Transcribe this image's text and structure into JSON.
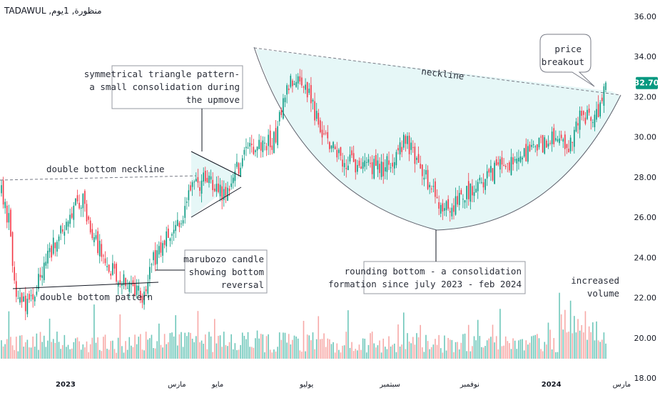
{
  "header": {
    "title": "TADAWUL ,منظورة, 1يوم"
  },
  "price_label": {
    "text": "32.70",
    "color": "#089981"
  },
  "colors": {
    "up": "#089981",
    "down": "#f23645",
    "vol_up": "#6ec7ba",
    "vol_down": "#f7a9a7",
    "bowl_fill": "#e6f7f7"
  },
  "annotations": {
    "double_bottom_neckline": "double bottom neckline",
    "double_bottom_pattern": "double bottom pattern",
    "triangle": [
      "symmetrical triangle pattern-",
      "a small consolidation during",
      "the upmove"
    ],
    "marubozo": [
      "marubozo candle",
      "showing bottom",
      "reversal"
    ],
    "neckline": "neckline",
    "rounding": [
      "rounding bottom - a consolidation",
      "formation since july 2023 - feb 2024"
    ],
    "breakout": [
      "price",
      "breakout"
    ],
    "volume": [
      "increased",
      "volume"
    ]
  },
  "chart_data": {
    "type": "candlestick",
    "title": "TADAWUL ,منظورة, 1يوم",
    "y_ticks": [
      "36.00",
      "34.00",
      "32.00",
      "30.00",
      "28.00",
      "26.00",
      "24.00",
      "22.00",
      "20.00",
      "18.00"
    ],
    "ylim": [
      17.4,
      36.6
    ],
    "x_ticks": [
      "2023",
      "مارس",
      "مايو",
      "يوليو",
      "سبتمبر",
      "نوفمبر",
      "2024",
      "مارس"
    ],
    "last_price": 32.7,
    "path_points": [
      {
        "i": 0,
        "p": 27.2
      },
      {
        "i": 4,
        "p": 25.8
      },
      {
        "i": 8,
        "p": 21.8
      },
      {
        "i": 15,
        "p": 21.5
      },
      {
        "i": 22,
        "p": 23.4
      },
      {
        "i": 30,
        "p": 25.0
      },
      {
        "i": 38,
        "p": 26.4
      },
      {
        "i": 44,
        "p": 26.8
      },
      {
        "i": 48,
        "p": 25.5
      },
      {
        "i": 55,
        "p": 24.0
      },
      {
        "i": 62,
        "p": 23.2
      },
      {
        "i": 66,
        "p": 23.0
      },
      {
        "i": 72,
        "p": 22.5
      },
      {
        "i": 77,
        "p": 22.0
      },
      {
        "i": 80,
        "p": 23.5
      },
      {
        "i": 86,
        "p": 24.5
      },
      {
        "i": 92,
        "p": 25.3
      },
      {
        "i": 98,
        "p": 26.2
      },
      {
        "i": 104,
        "p": 27.6
      },
      {
        "i": 110,
        "p": 27.9
      },
      {
        "i": 116,
        "p": 27.3
      },
      {
        "i": 122,
        "p": 27.2
      },
      {
        "i": 127,
        "p": 28.4
      },
      {
        "i": 133,
        "p": 29.2
      },
      {
        "i": 140,
        "p": 29.6
      },
      {
        "i": 147,
        "p": 29.8
      },
      {
        "i": 151,
        "p": 31.2
      },
      {
        "i": 156,
        "p": 32.8
      },
      {
        "i": 160,
        "p": 33.3
      },
      {
        "i": 165,
        "p": 32.2
      },
      {
        "i": 170,
        "p": 31.0
      },
      {
        "i": 176,
        "p": 29.8
      },
      {
        "i": 182,
        "p": 29.0
      },
      {
        "i": 190,
        "p": 28.6
      },
      {
        "i": 198,
        "p": 28.5
      },
      {
        "i": 206,
        "p": 28.4
      },
      {
        "i": 213,
        "p": 29.2
      },
      {
        "i": 218,
        "p": 30.0
      },
      {
        "i": 224,
        "p": 28.6
      },
      {
        "i": 230,
        "p": 27.8
      },
      {
        "i": 236,
        "p": 26.5
      },
      {
        "i": 242,
        "p": 26.3
      },
      {
        "i": 248,
        "p": 27.0
      },
      {
        "i": 256,
        "p": 27.6
      },
      {
        "i": 264,
        "p": 28.2
      },
      {
        "i": 272,
        "p": 28.6
      },
      {
        "i": 280,
        "p": 28.9
      },
      {
        "i": 288,
        "p": 29.4
      },
      {
        "i": 296,
        "p": 29.9
      },
      {
        "i": 302,
        "p": 29.7
      },
      {
        "i": 306,
        "p": 29.2
      },
      {
        "i": 312,
        "p": 31.2
      },
      {
        "i": 318,
        "p": 31.0
      },
      {
        "i": 323,
        "p": 31.5
      },
      {
        "i": 326,
        "p": 32.7
      }
    ]
  }
}
